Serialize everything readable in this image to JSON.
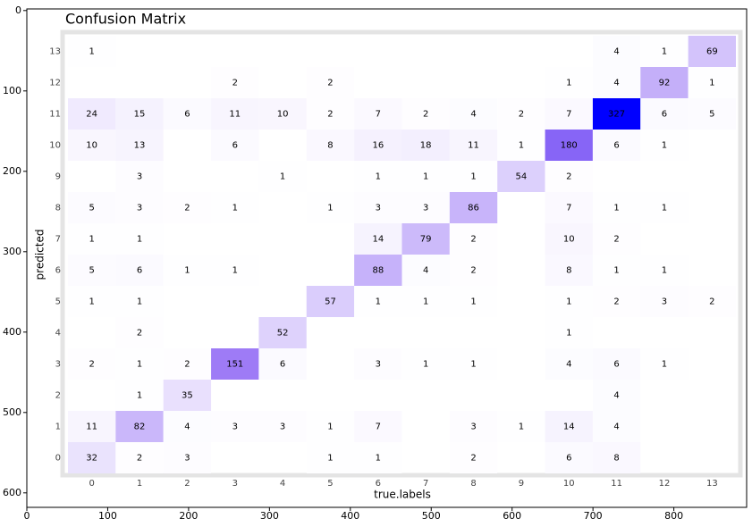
{
  "chart_data": [
    {
      "type": "image",
      "xlim": [
        0,
        890
      ],
      "ylim": [
        618,
        -2
      ],
      "xticks": [
        0,
        100,
        200,
        300,
        400,
        500,
        600,
        700,
        800
      ],
      "yticks": [
        0,
        100,
        200,
        300,
        400,
        500,
        600
      ]
    },
    {
      "type": "heatmap",
      "title": "Confusion Matrix",
      "xlabel": "true.labels",
      "ylabel": "predicted",
      "x": [
        "0",
        "1",
        "2",
        "3",
        "4",
        "5",
        "6",
        "7",
        "8",
        "9",
        "10",
        "11",
        "12",
        "13"
      ],
      "y": [
        "0",
        "1",
        "2",
        "3",
        "4",
        "5",
        "6",
        "7",
        "8",
        "9",
        "10",
        "11",
        "12",
        "13"
      ],
      "colormap": [
        "#ffffff",
        "#9670f5",
        "#0000ff"
      ],
      "values": [
        [
          32,
          2,
          3,
          null,
          null,
          1,
          1,
          null,
          2,
          null,
          6,
          8,
          null,
          null
        ],
        [
          11,
          82,
          4,
          3,
          3,
          1,
          7,
          null,
          3,
          1,
          14,
          4,
          null,
          null
        ],
        [
          null,
          1,
          35,
          null,
          null,
          null,
          null,
          null,
          null,
          null,
          null,
          4,
          null,
          null
        ],
        [
          2,
          1,
          2,
          151,
          6,
          null,
          3,
          1,
          1,
          null,
          4,
          6,
          1,
          null
        ],
        [
          null,
          2,
          null,
          null,
          52,
          null,
          null,
          null,
          null,
          null,
          1,
          null,
          null,
          null
        ],
        [
          1,
          1,
          null,
          null,
          null,
          57,
          1,
          1,
          1,
          null,
          1,
          2,
          3,
          2
        ],
        [
          5,
          6,
          1,
          1,
          null,
          null,
          88,
          4,
          2,
          null,
          8,
          1,
          1,
          null
        ],
        [
          1,
          1,
          null,
          null,
          null,
          null,
          14,
          79,
          2,
          null,
          10,
          2,
          null,
          null
        ],
        [
          5,
          3,
          2,
          1,
          null,
          1,
          3,
          3,
          86,
          null,
          7,
          1,
          1,
          null
        ],
        [
          null,
          3,
          null,
          null,
          1,
          null,
          1,
          1,
          1,
          54,
          2,
          null,
          null,
          null
        ],
        [
          10,
          13,
          null,
          6,
          null,
          8,
          16,
          18,
          11,
          1,
          180,
          6,
          1,
          null
        ],
        [
          24,
          15,
          6,
          11,
          10,
          2,
          7,
          2,
          4,
          2,
          7,
          327,
          6,
          5
        ],
        [
          null,
          null,
          null,
          2,
          null,
          2,
          null,
          null,
          null,
          null,
          1,
          4,
          92,
          1
        ],
        [
          1,
          null,
          null,
          null,
          null,
          null,
          null,
          null,
          null,
          null,
          null,
          4,
          1,
          69
        ]
      ]
    }
  ]
}
